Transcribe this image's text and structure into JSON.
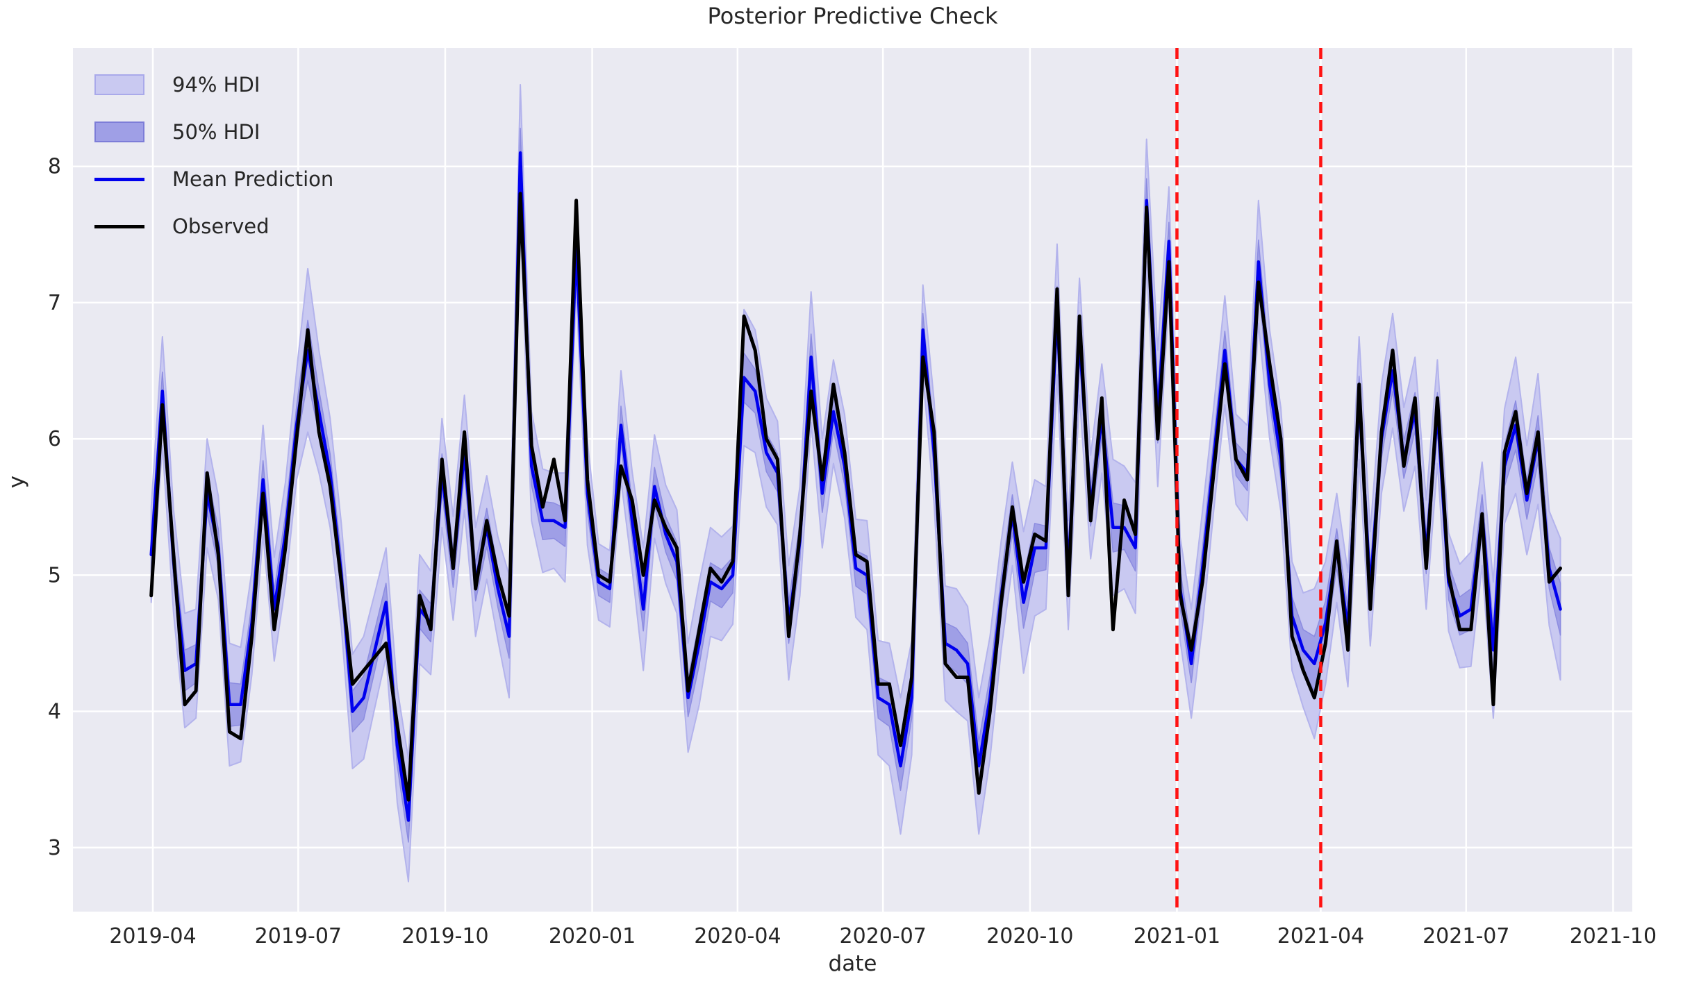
{
  "title": "Posterior Predictive Check",
  "axes": {
    "xlabel": "date",
    "ylabel": "y",
    "x_ticks": [
      "2019-04",
      "2019-07",
      "2019-10",
      "2020-01",
      "2020-04",
      "2020-07",
      "2020-10",
      "2021-01",
      "2021-04",
      "2021-07",
      "2021-10"
    ],
    "y_ticks": [
      3,
      4,
      5,
      6,
      7,
      8
    ]
  },
  "legend": {
    "items": [
      {
        "label": "94% HDI",
        "type": "band",
        "fill": "#c9c9f1",
        "edge": "#a9a9ea"
      },
      {
        "label": "50% HDI",
        "type": "band",
        "fill": "#9f9fe6",
        "edge": "#7d7dd8"
      },
      {
        "label": "Mean Prediction",
        "type": "line",
        "color": "#0000ee"
      },
      {
        "label": "Observed",
        "type": "line",
        "color": "#000000"
      }
    ]
  },
  "colors": {
    "plot_bg": "#eaeaf2",
    "grid": "#ffffff",
    "hdi94": "#c9c9f1",
    "hdi94_edge": "#b3b3ec",
    "hdi50": "#9f9fe6",
    "hdi50_edge": "#8c8ce0",
    "mean": "#0000ee",
    "observed": "#000000",
    "vline": "#ff1212",
    "text": "#262626"
  },
  "chart_data": {
    "type": "line",
    "title": "Posterior Predictive Check",
    "xlabel": "date",
    "ylabel": "y",
    "grid": true,
    "legend_position": "upper left",
    "xlim": [
      "2019-02-10",
      "2021-10-13"
    ],
    "ylim": [
      2.53,
      8.87
    ],
    "vlines": [
      "2021-01-01",
      "2021-04-01"
    ],
    "x": [
      "2019-03-31",
      "2019-04-07",
      "2019-04-14",
      "2019-04-21",
      "2019-04-28",
      "2019-05-05",
      "2019-05-12",
      "2019-05-19",
      "2019-05-26",
      "2019-06-02",
      "2019-06-09",
      "2019-06-16",
      "2019-06-23",
      "2019-06-30",
      "2019-07-07",
      "2019-07-14",
      "2019-07-21",
      "2019-07-28",
      "2019-08-04",
      "2019-08-11",
      "2019-08-18",
      "2019-08-25",
      "2019-09-01",
      "2019-09-08",
      "2019-09-15",
      "2019-09-22",
      "2019-09-29",
      "2019-10-06",
      "2019-10-13",
      "2019-10-20",
      "2019-10-27",
      "2019-11-03",
      "2019-11-10",
      "2019-11-17",
      "2019-11-24",
      "2019-12-01",
      "2019-12-08",
      "2019-12-15",
      "2019-12-22",
      "2019-12-29",
      "2020-01-05",
      "2020-01-12",
      "2020-01-19",
      "2020-01-26",
      "2020-02-02",
      "2020-02-09",
      "2020-02-16",
      "2020-02-23",
      "2020-03-01",
      "2020-03-08",
      "2020-03-15",
      "2020-03-22",
      "2020-03-29",
      "2020-04-05",
      "2020-04-12",
      "2020-04-19",
      "2020-04-26",
      "2020-05-03",
      "2020-05-10",
      "2020-05-17",
      "2020-05-24",
      "2020-05-31",
      "2020-06-07",
      "2020-06-14",
      "2020-06-21",
      "2020-06-28",
      "2020-07-05",
      "2020-07-12",
      "2020-07-19",
      "2020-07-26",
      "2020-08-02",
      "2020-08-09",
      "2020-08-16",
      "2020-08-23",
      "2020-08-30",
      "2020-09-06",
      "2020-09-13",
      "2020-09-20",
      "2020-09-27",
      "2020-10-04",
      "2020-10-11",
      "2020-10-18",
      "2020-10-25",
      "2020-11-01",
      "2020-11-08",
      "2020-11-15",
      "2020-11-22",
      "2020-11-29",
      "2020-12-06",
      "2020-12-13",
      "2020-12-20",
      "2020-12-27",
      "2021-01-03",
      "2021-01-10",
      "2021-01-17",
      "2021-01-24",
      "2021-01-31",
      "2021-02-07",
      "2021-02-14",
      "2021-02-21",
      "2021-02-28",
      "2021-03-07",
      "2021-03-14",
      "2021-03-21",
      "2021-03-28",
      "2021-04-04",
      "2021-04-11",
      "2021-04-18",
      "2021-04-25",
      "2021-05-02",
      "2021-05-09",
      "2021-05-16",
      "2021-05-23",
      "2021-05-30",
      "2021-06-06",
      "2021-06-13",
      "2021-06-20",
      "2021-06-27",
      "2021-07-04",
      "2021-07-11",
      "2021-07-18",
      "2021-07-25",
      "2021-08-01",
      "2021-08-08",
      "2021-08-15",
      "2021-08-22",
      "2021-08-29"
    ],
    "series": [
      {
        "name": "Observed",
        "values": [
          4.85,
          6.25,
          5.15,
          4.05,
          4.15,
          5.75,
          5.15,
          3.85,
          3.8,
          4.55,
          5.6,
          4.6,
          5.2,
          6.0,
          6.8,
          6.05,
          5.65,
          4.95,
          4.2,
          4.3,
          4.4,
          4.5,
          3.9,
          3.35,
          4.85,
          4.6,
          5.85,
          5.05,
          6.05,
          4.9,
          5.4,
          5.0,
          4.7,
          7.8,
          5.95,
          5.5,
          5.85,
          5.4,
          7.75,
          5.7,
          5.0,
          4.95,
          5.8,
          5.55,
          5.0,
          5.55,
          5.35,
          5.2,
          4.15,
          4.6,
          5.05,
          4.95,
          5.1,
          6.9,
          6.65,
          6.0,
          5.85,
          4.55,
          5.3,
          6.35,
          5.7,
          6.4,
          5.9,
          5.15,
          5.1,
          4.2,
          4.2,
          3.75,
          4.25,
          6.6,
          6.05,
          4.35,
          4.25,
          4.25,
          3.4,
          4.0,
          4.8,
          5.5,
          4.95,
          5.3,
          5.25,
          7.1,
          4.85,
          6.9,
          5.4,
          6.3,
          4.6,
          5.55,
          5.3,
          7.7,
          6.0,
          7.3,
          4.85,
          4.45,
          4.95,
          5.75,
          6.55,
          5.85,
          5.7,
          7.15,
          6.55,
          6.0,
          4.55,
          4.3,
          4.1,
          4.5,
          5.25,
          4.45,
          6.4,
          4.75,
          6.05,
          6.65,
          5.8,
          6.3,
          5.05,
          6.3,
          5.0,
          4.6,
          4.6,
          5.45,
          4.05,
          5.9,
          6.2,
          5.6,
          6.05,
          4.95,
          5.05
        ]
      },
      {
        "name": "Mean Prediction",
        "values": [
          5.15,
          6.35,
          5.1,
          4.3,
          4.35,
          5.6,
          5.2,
          4.05,
          4.05,
          4.65,
          5.7,
          4.75,
          5.3,
          6.1,
          6.65,
          6.2,
          5.75,
          5.0,
          4.0,
          4.1,
          4.45,
          4.8,
          3.75,
          3.2,
          4.75,
          4.65,
          5.75,
          5.05,
          5.9,
          4.95,
          5.35,
          4.9,
          4.55,
          8.1,
          5.8,
          5.4,
          5.4,
          5.35,
          7.4,
          5.6,
          4.95,
          4.9,
          6.1,
          5.4,
          4.75,
          5.65,
          5.3,
          5.1,
          4.1,
          4.5,
          4.95,
          4.9,
          5.0,
          6.45,
          6.35,
          5.9,
          5.75,
          4.65,
          5.25,
          6.6,
          5.6,
          6.2,
          5.8,
          5.05,
          5.0,
          4.1,
          4.05,
          3.6,
          4.1,
          6.8,
          5.9,
          4.5,
          4.45,
          4.35,
          3.6,
          4.1,
          4.85,
          5.45,
          4.8,
          5.2,
          5.2,
          6.95,
          5.0,
          6.75,
          5.5,
          6.15,
          5.35,
          5.35,
          5.2,
          7.75,
          6.15,
          7.45,
          4.9,
          4.35,
          5.05,
          5.85,
          6.65,
          5.85,
          5.75,
          7.3,
          6.4,
          5.85,
          4.7,
          4.45,
          4.35,
          4.65,
          5.2,
          4.6,
          6.3,
          4.9,
          6.0,
          6.5,
          5.85,
          6.2,
          5.15,
          6.2,
          4.95,
          4.7,
          4.75,
          5.45,
          4.45,
          5.8,
          6.1,
          5.55,
          6.0,
          5.05,
          4.75
        ]
      },
      {
        "name": "94% HDI halfwidth",
        "values": [
          0.35,
          0.4,
          0.38,
          0.42,
          0.4,
          0.4,
          0.38,
          0.45,
          0.42,
          0.38,
          0.4,
          0.38,
          0.38,
          0.4,
          0.6,
          0.45,
          0.4,
          0.38,
          0.42,
          0.45,
          0.42,
          0.4,
          0.42,
          0.45,
          0.4,
          0.38,
          0.4,
          0.38,
          0.42,
          0.4,
          0.38,
          0.38,
          0.45,
          0.5,
          0.4,
          0.38,
          0.35,
          0.4,
          0.3,
          0.38,
          0.28,
          0.28,
          0.4,
          0.36,
          0.45,
          0.38,
          0.36,
          0.38,
          0.4,
          0.45,
          0.4,
          0.38,
          0.36,
          0.5,
          0.45,
          0.4,
          0.38,
          0.42,
          0.4,
          0.48,
          0.4,
          0.38,
          0.38,
          0.36,
          0.4,
          0.42,
          0.45,
          0.5,
          0.42,
          0.33,
          0.38,
          0.42,
          0.45,
          0.42,
          0.5,
          0.45,
          0.4,
          0.38,
          0.52,
          0.5,
          0.45,
          0.48,
          0.4,
          0.43,
          0.38,
          0.4,
          0.5,
          0.45,
          0.48,
          0.45,
          0.5,
          0.4,
          0.38,
          0.4,
          0.42,
          0.38,
          0.4,
          0.33,
          0.35,
          0.45,
          0.4,
          0.38,
          0.4,
          0.42,
          0.55,
          0.45,
          0.4,
          0.42,
          0.45,
          0.42,
          0.4,
          0.42,
          0.38,
          0.4,
          0.4,
          0.38,
          0.36,
          0.38,
          0.42,
          0.38,
          0.5,
          0.42,
          0.5,
          0.4,
          0.48,
          0.42,
          0.52
        ]
      },
      {
        "name": "50% HDI halfwidth",
        "values": [
          0.13,
          0.14,
          0.14,
          0.15,
          0.14,
          0.14,
          0.14,
          0.16,
          0.15,
          0.14,
          0.14,
          0.14,
          0.14,
          0.14,
          0.22,
          0.16,
          0.14,
          0.14,
          0.15,
          0.16,
          0.15,
          0.14,
          0.15,
          0.16,
          0.14,
          0.14,
          0.14,
          0.14,
          0.15,
          0.14,
          0.14,
          0.14,
          0.16,
          0.18,
          0.14,
          0.14,
          0.13,
          0.14,
          0.11,
          0.14,
          0.1,
          0.1,
          0.14,
          0.13,
          0.16,
          0.14,
          0.13,
          0.14,
          0.14,
          0.16,
          0.14,
          0.14,
          0.13,
          0.18,
          0.16,
          0.14,
          0.14,
          0.15,
          0.14,
          0.17,
          0.14,
          0.14,
          0.14,
          0.13,
          0.14,
          0.15,
          0.16,
          0.18,
          0.15,
          0.12,
          0.14,
          0.15,
          0.16,
          0.15,
          0.18,
          0.16,
          0.14,
          0.14,
          0.19,
          0.18,
          0.16,
          0.17,
          0.14,
          0.15,
          0.14,
          0.14,
          0.18,
          0.16,
          0.17,
          0.16,
          0.18,
          0.14,
          0.14,
          0.14,
          0.15,
          0.14,
          0.14,
          0.12,
          0.13,
          0.16,
          0.14,
          0.14,
          0.14,
          0.15,
          0.2,
          0.16,
          0.14,
          0.15,
          0.16,
          0.15,
          0.14,
          0.15,
          0.14,
          0.14,
          0.14,
          0.14,
          0.13,
          0.14,
          0.15,
          0.14,
          0.18,
          0.15,
          0.18,
          0.14,
          0.17,
          0.15,
          0.19
        ]
      }
    ]
  }
}
